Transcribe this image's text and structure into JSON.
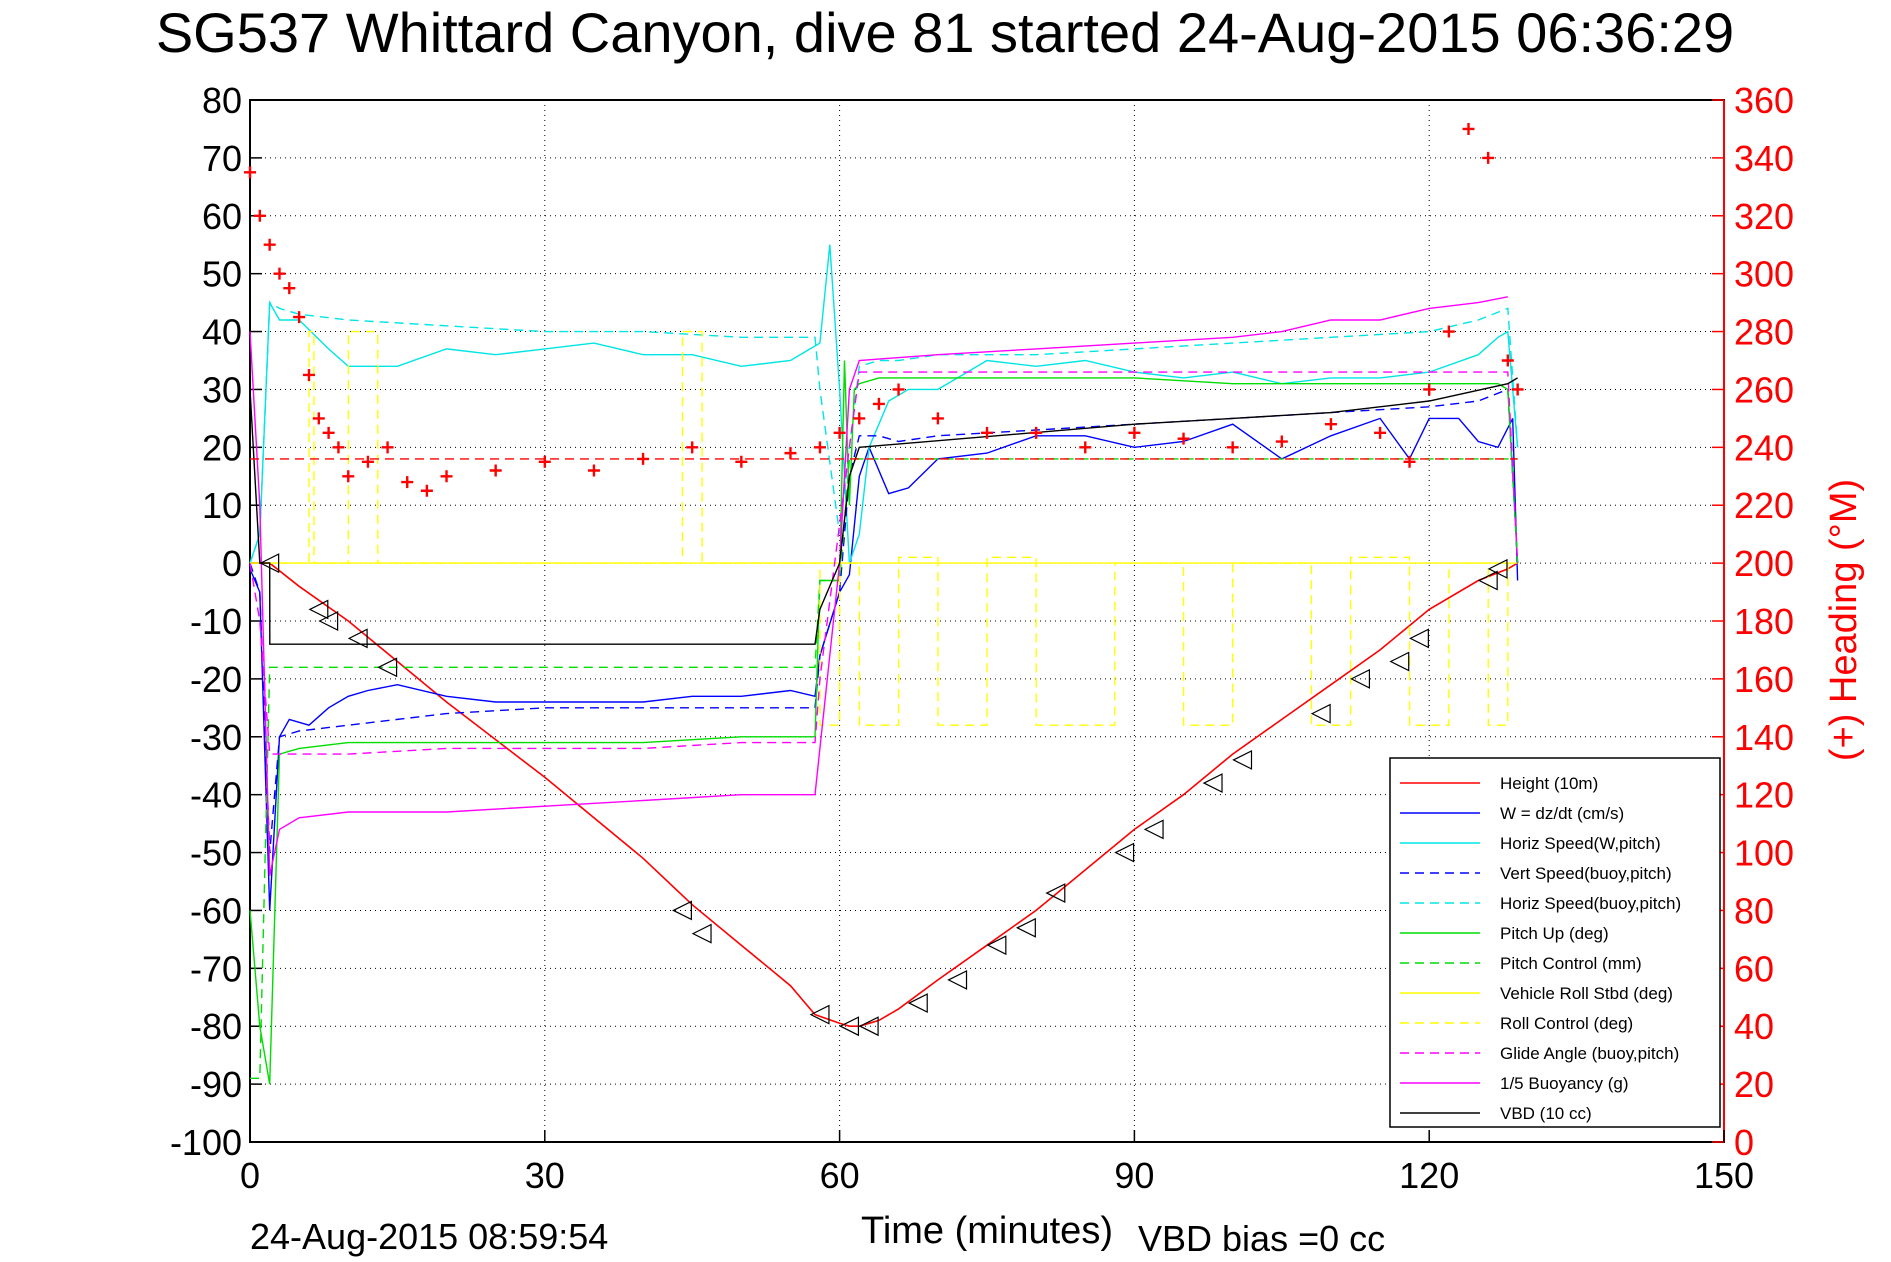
{
  "header": {
    "title": "SG537 Whittard Canyon, dive 81 started 24-Aug-2015 06:36:29"
  },
  "footer": {
    "timestamp": "24-Aug-2015 08:59:54",
    "vbd_bias": "VBD bias =0 cc"
  },
  "colors": {
    "height": "#ff0000",
    "w": "#0000ff",
    "horiz_speed": "#00e5e5",
    "pitch": "#00dd00",
    "roll": "#ffff00",
    "glide": "#ff00ff",
    "buoyancy": "#ff00ff",
    "vbd": "#000000",
    "heading": "#ff0000"
  },
  "chart_data": {
    "type": "line",
    "title": "SG537 Whittard Canyon, dive 81 started 24-Aug-2015 06:36:29",
    "xlabel": "Time (minutes)",
    "ylabel": "",
    "y2label": "(+) Heading (°M)",
    "xlim": [
      0,
      150
    ],
    "ylim": [
      -100,
      80
    ],
    "y2lim": [
      0,
      360
    ],
    "xticks": [
      "0",
      "30",
      "60",
      "90",
      "120",
      "150"
    ],
    "yticks": [
      "80",
      "70",
      "60",
      "50",
      "40",
      "30",
      "20",
      "10",
      "0",
      "-10",
      "-20",
      "-30",
      "-40",
      "-50",
      "-60",
      "-70",
      "-80",
      "-90",
      "-100"
    ],
    "y2ticks": [
      "360",
      "340",
      "320",
      "300",
      "280",
      "260",
      "240",
      "220",
      "200",
      "180",
      "160",
      "140",
      "120",
      "100",
      "80",
      "60",
      "40",
      "20",
      "0"
    ],
    "grid": true,
    "legend_position": "bottom-right",
    "series": [
      {
        "name": "Height (10m)",
        "color": "#ff0000",
        "dash": "solid",
        "x": [
          0,
          1,
          2,
          5,
          10,
          15,
          20,
          30,
          40,
          45,
          50,
          55,
          57.5,
          60,
          61,
          62,
          63,
          64,
          66,
          70,
          75,
          80,
          85,
          90,
          95,
          100,
          105,
          110,
          115,
          120,
          125,
          128,
          129
        ],
        "y": [
          0,
          0,
          0,
          -4,
          -10,
          -17,
          -24,
          -37,
          -51,
          -59,
          -66,
          -73,
          -78,
          -79.5,
          -80,
          -80,
          -79.5,
          -79,
          -77,
          -72,
          -66,
          -60,
          -53,
          -46,
          -40,
          -33,
          -27,
          -21,
          -15,
          -8,
          -3,
          -1,
          0
        ]
      },
      {
        "name": "W = dz/dt (cm/s)",
        "color": "#0000ff",
        "dash": "solid",
        "x": [
          0,
          1,
          2,
          3,
          4,
          6,
          8,
          10,
          12,
          15,
          20,
          25,
          30,
          35,
          40,
          45,
          50,
          55,
          57.5,
          58,
          60,
          61,
          62,
          63,
          65,
          67,
          70,
          75,
          80,
          85,
          90,
          95,
          100,
          105,
          110,
          115,
          118,
          120,
          123,
          125,
          127,
          128.5,
          129
        ],
        "y": [
          -1,
          -5,
          -60,
          -30,
          -27,
          -28,
          -25,
          -23,
          -22,
          -21,
          -23,
          -24,
          -24,
          -24,
          -24,
          -23,
          -23,
          -22,
          -23,
          -16,
          -5,
          -2,
          15,
          20,
          12,
          13,
          18,
          19,
          22,
          22,
          20,
          21,
          24,
          18,
          22,
          25,
          18,
          25,
          25,
          21,
          20,
          25,
          -3
        ]
      },
      {
        "name": "Horiz Speed(W,pitch)",
        "color": "#00e5e5",
        "dash": "solid",
        "x": [
          0,
          1,
          2,
          3,
          5,
          8,
          10,
          15,
          20,
          25,
          30,
          35,
          40,
          45,
          50,
          55,
          57,
          58,
          59,
          60,
          61,
          62,
          63,
          65,
          67,
          70,
          75,
          80,
          85,
          90,
          95,
          100,
          105,
          110,
          115,
          120,
          125,
          127,
          128,
          129
        ],
        "y": [
          0,
          5,
          45,
          42,
          42,
          37,
          34,
          34,
          37,
          36,
          37,
          38,
          36,
          36,
          34,
          35,
          37,
          38,
          55,
          30,
          0,
          5,
          20,
          28,
          30,
          30,
          35,
          34,
          35,
          33,
          32,
          33,
          31,
          32,
          32,
          33,
          36,
          39,
          40,
          20
        ]
      },
      {
        "name": "Vert Speed(buoy,pitch)",
        "color": "#0000ff",
        "dash": "dashed",
        "x": [
          0,
          1,
          2,
          3,
          5,
          10,
          20,
          30,
          40,
          50,
          57.5,
          58,
          60,
          61,
          62,
          64,
          66,
          70,
          80,
          90,
          100,
          110,
          120,
          125,
          128,
          129
        ],
        "y": [
          0,
          -5,
          -50,
          -30,
          -29,
          -28,
          -26,
          -25,
          -25,
          -25,
          -25,
          -16,
          -5,
          15,
          22,
          22,
          21,
          22,
          23,
          24,
          25,
          26,
          27,
          28,
          30,
          0
        ]
      },
      {
        "name": "Horiz Speed(buoy,pitch)",
        "color": "#00e5e5",
        "dash": "dashed",
        "x": [
          0,
          1,
          2,
          3,
          5,
          10,
          20,
          30,
          40,
          50,
          57.5,
          58,
          60,
          61,
          62,
          64,
          66,
          70,
          80,
          90,
          100,
          110,
          120,
          125,
          128,
          129
        ],
        "y": [
          0,
          5,
          45,
          44,
          43,
          42,
          41,
          40,
          40,
          39,
          39,
          30,
          5,
          20,
          34,
          35,
          35,
          36,
          36,
          37,
          38,
          39,
          40,
          42,
          44,
          20
        ]
      },
      {
        "name": "Pitch Up (deg)",
        "color": "#00dd00",
        "dash": "solid",
        "x": [
          0,
          1,
          2,
          3,
          5,
          10,
          20,
          30,
          40,
          50,
          57.5,
          58,
          60,
          60.5,
          61,
          61.5,
          62,
          64,
          66,
          70,
          80,
          90,
          100,
          110,
          120,
          125,
          127,
          128,
          129
        ],
        "y": [
          -60,
          -80,
          -90,
          -33,
          -32,
          -31,
          -31,
          -31,
          -31,
          -30,
          -30,
          -3,
          -3,
          35,
          10,
          30,
          31,
          32,
          32,
          32,
          32,
          32,
          31,
          31,
          31,
          31,
          31,
          30,
          0
        ]
      },
      {
        "name": "Pitch Control (mm)",
        "color": "#00dd00",
        "dash": "dashed",
        "x": [
          0,
          1,
          2,
          3,
          10,
          20,
          30,
          40,
          50,
          57.5,
          58,
          60,
          61,
          62,
          64,
          70,
          80,
          90,
          100,
          110,
          120,
          128,
          129
        ],
        "y": [
          -89,
          -89,
          -18,
          -18,
          -18,
          -18,
          -18,
          -18,
          -18,
          -18,
          -3,
          -3,
          18,
          18,
          18,
          18,
          18,
          18,
          18,
          18,
          18,
          18,
          18
        ]
      },
      {
        "name": "Vehicle Roll Stbd (deg)",
        "color": "#ffff00",
        "dash": "solid",
        "x": [
          0,
          129
        ],
        "y": [
          0,
          0
        ]
      },
      {
        "name": "Roll Control (deg)",
        "color": "#ffff00",
        "dash": "dashed",
        "x": [
          0,
          6,
          6.01,
          6.5,
          6.51,
          10,
          10.01,
          13,
          13.01,
          44,
          44.01,
          46,
          46.01,
          58,
          58.01,
          60,
          60.01,
          62,
          62.01,
          66,
          66.01,
          70,
          70.01,
          75,
          75.01,
          80,
          80.01,
          88,
          88.01,
          95,
          95.01,
          100,
          100.01,
          108,
          108.01,
          112,
          112.01,
          118,
          118.01,
          122,
          122.01,
          126,
          126.01,
          128,
          128.01
        ],
        "y": [
          0,
          0,
          40,
          40,
          0,
          0,
          40,
          40,
          0,
          0,
          40,
          40,
          0,
          0,
          -28,
          -28,
          0,
          0,
          -28,
          -28,
          1,
          1,
          -28,
          -28,
          1,
          1,
          -28,
          -28,
          0,
          0,
          -28,
          -28,
          0,
          0,
          -28,
          -28,
          1,
          1,
          -28,
          -28,
          0,
          0,
          -28,
          -28,
          0
        ]
      },
      {
        "name": "Glide Angle (buoy,pitch)",
        "color": "#ff00ff",
        "dash": "dashed",
        "x": [
          0,
          1,
          2,
          3,
          10,
          20,
          30,
          40,
          50,
          57.5,
          58,
          61,
          62,
          70,
          80,
          90,
          100,
          110,
          120,
          128,
          129
        ],
        "y": [
          0,
          -10,
          -33,
          -33,
          -33,
          -32,
          -32,
          -32,
          -31,
          -31,
          -20,
          20,
          33,
          33,
          33,
          33,
          33,
          33,
          33,
          33,
          0
        ]
      },
      {
        "name": "1/5 Buoyancy (g)",
        "color": "#ff00ff",
        "dash": "solid",
        "x": [
          0,
          1,
          2,
          3,
          5,
          10,
          20,
          30,
          40,
          50,
          57.5,
          60,
          61,
          62,
          70,
          80,
          90,
          100,
          105,
          110,
          115,
          120,
          125,
          128
        ],
        "y": [
          40,
          10,
          -54,
          -46,
          -44,
          -43,
          -43,
          -42,
          -41,
          -40,
          -40,
          0,
          30,
          35,
          36,
          37,
          38,
          39,
          40,
          42,
          42,
          44,
          45,
          46
        ]
      },
      {
        "name": "VBD (10 cc)",
        "color": "#000000",
        "dash": "solid",
        "x": [
          0,
          1,
          2,
          2.01,
          57.5,
          58,
          60,
          61,
          62,
          62.01,
          90,
          100,
          110,
          120,
          128,
          129
        ],
        "y": [
          30,
          0,
          0,
          -14,
          -14,
          -8,
          0,
          15,
          20,
          20,
          24,
          25,
          26,
          28,
          31,
          32
        ]
      }
    ],
    "heading": {
      "name": "(+) Heading (°M)",
      "color": "#ff0000",
      "marker": "+",
      "reference_line": 236,
      "x": [
        0,
        1,
        2,
        3,
        4,
        5,
        6,
        7,
        8,
        9,
        10,
        12,
        14,
        16,
        18,
        20,
        25,
        30,
        35,
        40,
        45,
        50,
        55,
        58,
        60,
        62,
        64,
        66,
        70,
        75,
        80,
        85,
        90,
        95,
        100,
        105,
        110,
        115,
        118,
        120,
        122,
        124,
        126,
        128,
        129
      ],
      "y": [
        335,
        320,
        310,
        300,
        295,
        285,
        265,
        250,
        245,
        240,
        230,
        235,
        240,
        228,
        225,
        230,
        232,
        235,
        232,
        236,
        240,
        235,
        238,
        240,
        245,
        250,
        255,
        260,
        250,
        245,
        245,
        240,
        245,
        243,
        240,
        242,
        248,
        245,
        235,
        260,
        280,
        350,
        340,
        270,
        260
      ]
    },
    "markers": {
      "name": "triangles on Height",
      "x": [
        2,
        7,
        8,
        11,
        14,
        44,
        46,
        58,
        61,
        63,
        68,
        72,
        76,
        79,
        82,
        89,
        92,
        98,
        101,
        109,
        113,
        117,
        119,
        126,
        127
      ],
      "y": [
        0,
        -8,
        -10,
        -13,
        -18,
        -60,
        -64,
        -78,
        -80,
        -80,
        -76,
        -72,
        -66,
        -63,
        -57,
        -50,
        -46,
        -38,
        -34,
        -26,
        -20,
        -17,
        -13,
        -3,
        -1
      ]
    }
  }
}
